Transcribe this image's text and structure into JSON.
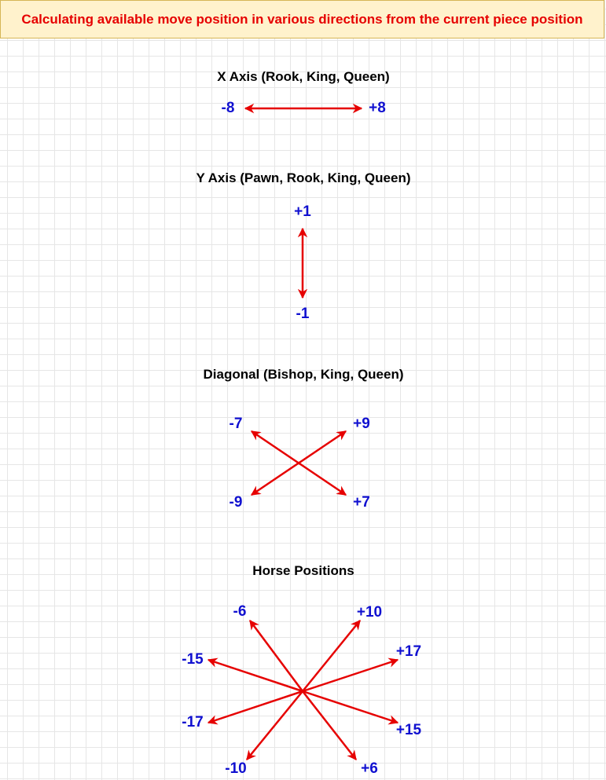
{
  "title": "Calculating available move position in various directions from the current piece position",
  "sections": {
    "x_axis": {
      "heading": "X Axis (Rook, King, Queen)",
      "left": "-8",
      "right": "+8"
    },
    "y_axis": {
      "heading": "Y Axis (Pawn, Rook, King, Queen)",
      "up": "+1",
      "down": "-1"
    },
    "diagonal": {
      "heading": "Diagonal (Bishop, King, Queen)",
      "up_left": "-7",
      "up_right": "+9",
      "down_left": "-9",
      "down_right": "+7"
    },
    "horse": {
      "heading": "Horse Positions",
      "labels": [
        "-6",
        "+10",
        "+17",
        "-15",
        "-17",
        "+15",
        "-10",
        "+6"
      ]
    }
  },
  "colors": {
    "arrow": "#e60000",
    "label": "#1010d0",
    "banner_bg": "#fff2cc",
    "banner_border": "#d6b656"
  }
}
